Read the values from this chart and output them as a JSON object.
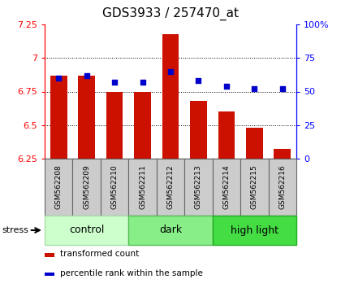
{
  "title": "GDS3933 / 257470_at",
  "samples": [
    "GSM562208",
    "GSM562209",
    "GSM562210",
    "GSM562211",
    "GSM562212",
    "GSM562213",
    "GSM562214",
    "GSM562215",
    "GSM562216"
  ],
  "transformed_count": [
    6.87,
    6.87,
    6.75,
    6.75,
    7.18,
    6.68,
    6.6,
    6.48,
    6.32
  ],
  "percentile_rank": [
    60,
    62,
    57,
    57,
    65,
    58,
    54,
    52,
    52
  ],
  "ylim_left": [
    6.25,
    7.25
  ],
  "ylim_right": [
    0,
    100
  ],
  "yticks_left": [
    6.25,
    6.5,
    6.75,
    7.0,
    7.25
  ],
  "yticks_right": [
    0,
    25,
    50,
    75,
    100
  ],
  "ytick_labels_left": [
    "6.25",
    "6.5",
    "6.75",
    "7",
    "7.25"
  ],
  "ytick_labels_right": [
    "0",
    "25",
    "50",
    "75",
    "100%"
  ],
  "groups": [
    {
      "label": "control",
      "start": 0,
      "end": 3,
      "color": "#ccffcc",
      "border": "#aaddaa"
    },
    {
      "label": "dark",
      "start": 3,
      "end": 6,
      "color": "#88ee88",
      "border": "#55bb55"
    },
    {
      "label": "high light",
      "start": 6,
      "end": 9,
      "color": "#44dd44",
      "border": "#22aa22"
    }
  ],
  "bar_color": "#cc1100",
  "dot_color": "#0000cc",
  "bar_width": 0.6,
  "stress_label": "stress",
  "legend_bar_label": "transformed count",
  "legend_dot_label": "percentile rank within the sample",
  "title_fontsize": 11,
  "tick_fontsize": 8,
  "sample_fontsize": 6.5,
  "group_fontsize": 9,
  "legend_fontsize": 7.5
}
